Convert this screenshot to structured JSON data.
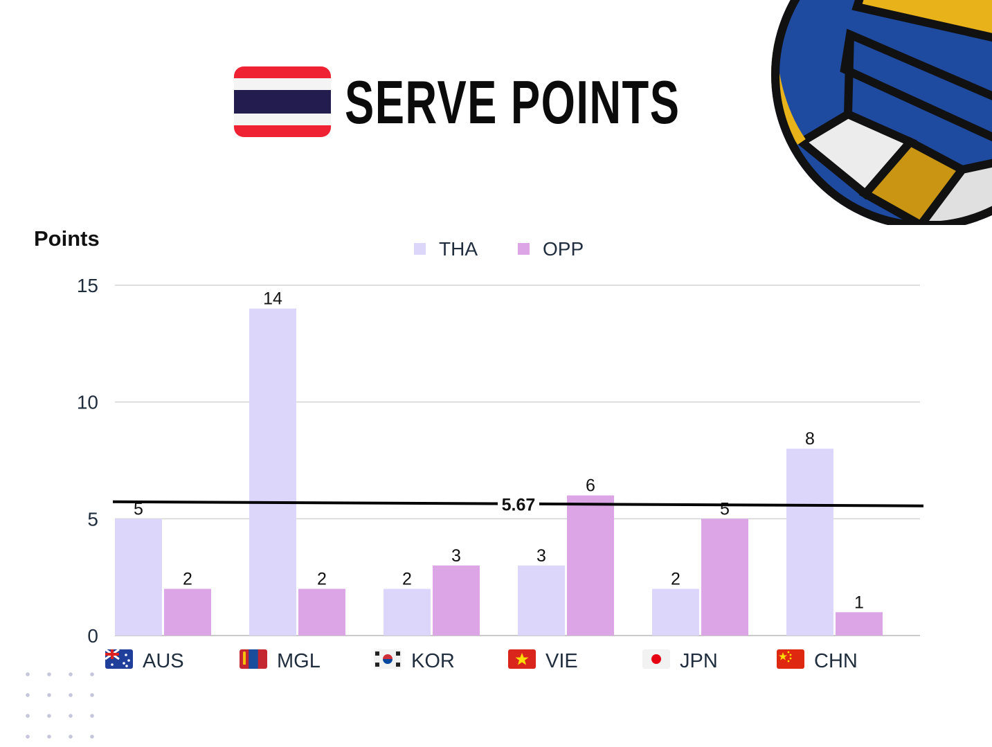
{
  "header": {
    "title": "SERVE POINTS",
    "flag": "thailand-flag"
  },
  "decor": {
    "ball": "volleyball-icon",
    "dots": "dot-grid"
  },
  "chart_data": {
    "type": "bar",
    "ylabel": "Points",
    "xlabel": "",
    "ylim": [
      0,
      15
    ],
    "yticks": [
      0,
      5,
      10,
      15
    ],
    "grid": true,
    "legend_position": "top-center",
    "categories": [
      "AUS",
      "MGL",
      "KOR",
      "VIE",
      "JPN",
      "CHN"
    ],
    "category_flags": [
      "australia-flag-icon",
      "mongolia-flag-icon",
      "south-korea-flag-icon",
      "vietnam-flag-icon",
      "japan-flag-icon",
      "china-flag-icon"
    ],
    "series": [
      {
        "name": "THA",
        "color": "#dcd6fb",
        "values": [
          5,
          14,
          2,
          3,
          2,
          8
        ]
      },
      {
        "name": "OPP",
        "color": "#dca6e6",
        "values": [
          2,
          2,
          3,
          6,
          5,
          1
        ]
      }
    ],
    "reference_line": {
      "value": 5.67,
      "label": "5.67",
      "color": "#000000"
    }
  }
}
